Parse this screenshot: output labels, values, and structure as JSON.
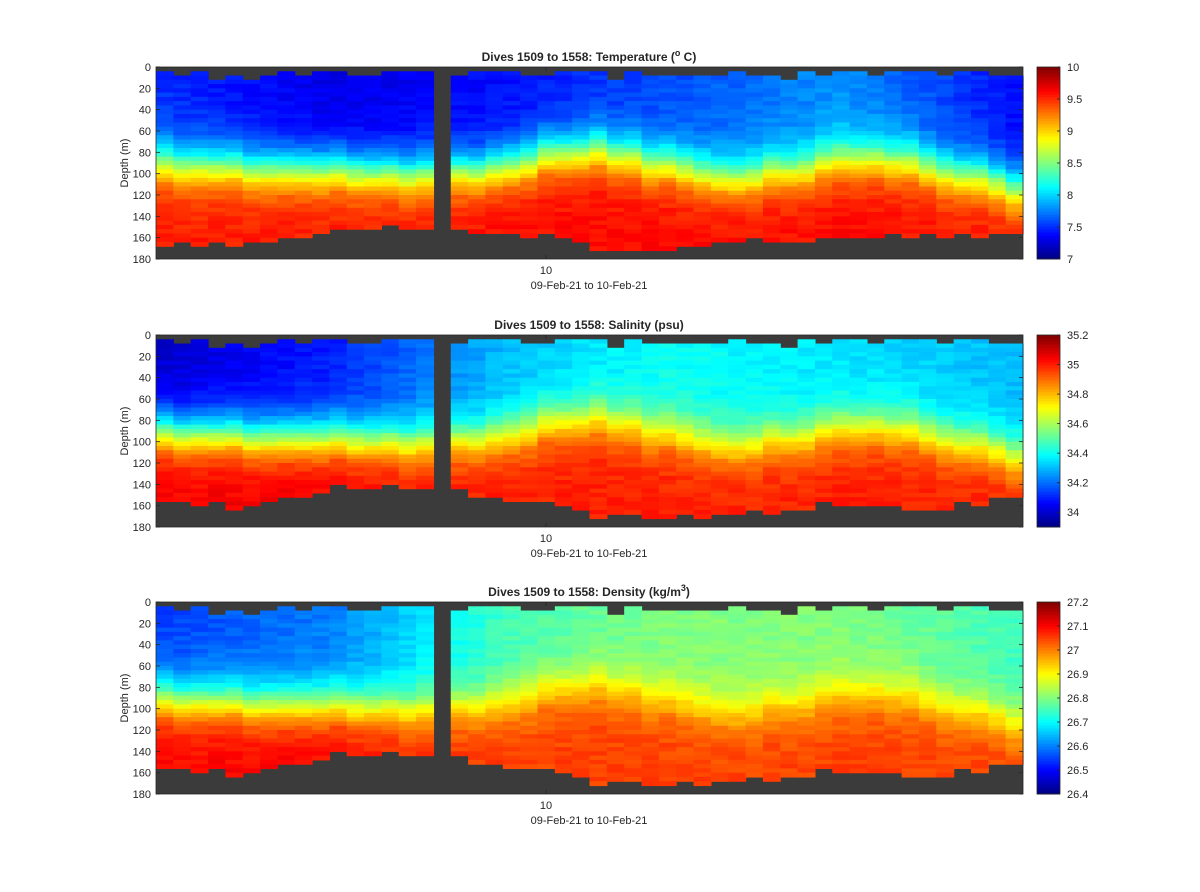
{
  "chart_data": [
    {
      "type": "heatmap",
      "title_main": "Dives 1509 to 1558: Temperature (",
      "title_sup": "o",
      "title_tail": " C)",
      "ylabel": "Depth (m)",
      "xlabel": "09-Feb-21 to 10-Feb-21",
      "x_tick_labels": [
        "10"
      ],
      "ylim": [
        0,
        180
      ],
      "y_ticks": [
        0,
        20,
        40,
        60,
        80,
        100,
        120,
        140,
        160,
        180
      ],
      "y_reversed": true,
      "colormap": "jet",
      "clim": [
        7,
        10
      ],
      "colorbar_ticks": [
        "7",
        "7.5",
        "8",
        "8.5",
        "9",
        "9.5",
        "10"
      ],
      "colorbar_values": [
        7,
        7.5,
        8,
        8.5,
        9,
        9.5,
        10
      ],
      "no_data_color": "#3b3b3b",
      "dives": [
        1509,
        1558
      ],
      "surface_values": [
        7.5,
        7.3,
        7.4,
        7.6,
        7.8,
        7.4
      ],
      "deep_values": [
        9.55,
        9.55,
        9.6,
        9.6,
        9.6,
        9.55
      ],
      "thermocline_depth_profile": [
        90,
        95,
        100,
        75,
        105,
        82,
        110
      ],
      "bottom_depth_profile": [
        170,
        165,
        150,
        150,
        160,
        175,
        165,
        160,
        158,
        155
      ]
    },
    {
      "type": "heatmap",
      "title_main": "Dives 1509 to 1558: Salinity (psu)",
      "title_sup": "",
      "title_tail": "",
      "ylabel": "Depth (m)",
      "xlabel": "09-Feb-21 to 10-Feb-21",
      "x_tick_labels": [
        "10"
      ],
      "ylim": [
        0,
        180
      ],
      "y_ticks": [
        0,
        20,
        40,
        60,
        80,
        100,
        120,
        140,
        160,
        180
      ],
      "y_reversed": true,
      "colormap": "jet",
      "clim": [
        33.9,
        35.2
      ],
      "colorbar_ticks": [
        "34",
        "34.2",
        "34.4",
        "34.6",
        "34.8",
        "35",
        "35.2"
      ],
      "colorbar_values": [
        34,
        34.2,
        34.4,
        34.6,
        34.8,
        35,
        35.2
      ],
      "no_data_color": "#3b3b3b",
      "dives": [
        1509,
        1558
      ],
      "surface_values": [
        34.0,
        34.1,
        34.3,
        34.4,
        34.35,
        34.3
      ],
      "deep_values": [
        35.05,
        35.05,
        35.0,
        35.0,
        35.0,
        35.0
      ],
      "bottom_depth_profile": [
        160,
        158,
        140,
        142,
        160,
        172,
        170,
        158,
        165,
        148
      ]
    },
    {
      "type": "heatmap",
      "title_main": "Dives 1509 to 1558: Density (kg/m",
      "title_sup": "3",
      "title_tail": ")",
      "ylabel": "Depth (m)",
      "xlabel": "09-Feb-21 to 10-Feb-21",
      "x_tick_labels": [
        "10"
      ],
      "ylim": [
        0,
        180
      ],
      "y_ticks": [
        0,
        20,
        40,
        60,
        80,
        100,
        120,
        140,
        160,
        180
      ],
      "y_reversed": true,
      "colormap": "jet",
      "clim": [
        26.4,
        27.2
      ],
      "colorbar_ticks": [
        "26.4",
        "26.5",
        "26.6",
        "26.7",
        "26.8",
        "26.9",
        "27",
        "27.1",
        "27.2"
      ],
      "colorbar_values": [
        26.4,
        26.5,
        26.6,
        26.7,
        26.8,
        26.9,
        27.0,
        27.1,
        27.2
      ],
      "no_data_color": "#3b3b3b",
      "dives": [
        1509,
        1558
      ],
      "surface_values": [
        26.55,
        26.6,
        26.75,
        26.8,
        26.8,
        26.75
      ],
      "deep_values": [
        27.1,
        27.1,
        27.05,
        27.05,
        27.05,
        27.05
      ],
      "bottom_depth_profile": [
        160,
        158,
        140,
        142,
        160,
        172,
        170,
        158,
        165,
        148
      ]
    }
  ]
}
